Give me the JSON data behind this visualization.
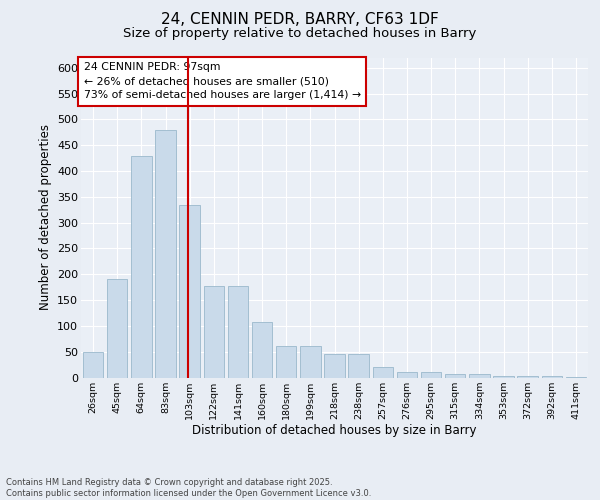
{
  "title_line1": "24, CENNIN PEDR, BARRY, CF63 1DF",
  "title_line2": "Size of property relative to detached houses in Barry",
  "xlabel": "Distribution of detached houses by size in Barry",
  "ylabel": "Number of detached properties",
  "categories": [
    "26sqm",
    "45sqm",
    "64sqm",
    "83sqm",
    "103sqm",
    "122sqm",
    "141sqm",
    "160sqm",
    "180sqm",
    "199sqm",
    "218sqm",
    "238sqm",
    "257sqm",
    "276sqm",
    "295sqm",
    "315sqm",
    "334sqm",
    "353sqm",
    "372sqm",
    "392sqm",
    "411sqm"
  ],
  "values": [
    50,
    190,
    430,
    480,
    335,
    177,
    177,
    108,
    62,
    62,
    45,
    45,
    20,
    11,
    11,
    7,
    7,
    3,
    3,
    2,
    1
  ],
  "bar_color": "#c9daea",
  "bar_edge_color": "#9ab8cc",
  "vline_x": 3.92,
  "vline_color": "#cc0000",
  "annotation_text": "24 CENNIN PEDR: 97sqm\n← 26% of detached houses are smaller (510)\n73% of semi-detached houses are larger (1,414) →",
  "annotation_box_facecolor": "#ffffff",
  "annotation_edge_color": "#cc0000",
  "bg_color": "#e8edf4",
  "plot_bg_color": "#eaeff6",
  "grid_color": "#ffffff",
  "footer_text": "Contains HM Land Registry data © Crown copyright and database right 2025.\nContains public sector information licensed under the Open Government Licence v3.0.",
  "ylim": [
    0,
    620
  ],
  "yticks": [
    0,
    50,
    100,
    150,
    200,
    250,
    300,
    350,
    400,
    450,
    500,
    550,
    600
  ]
}
